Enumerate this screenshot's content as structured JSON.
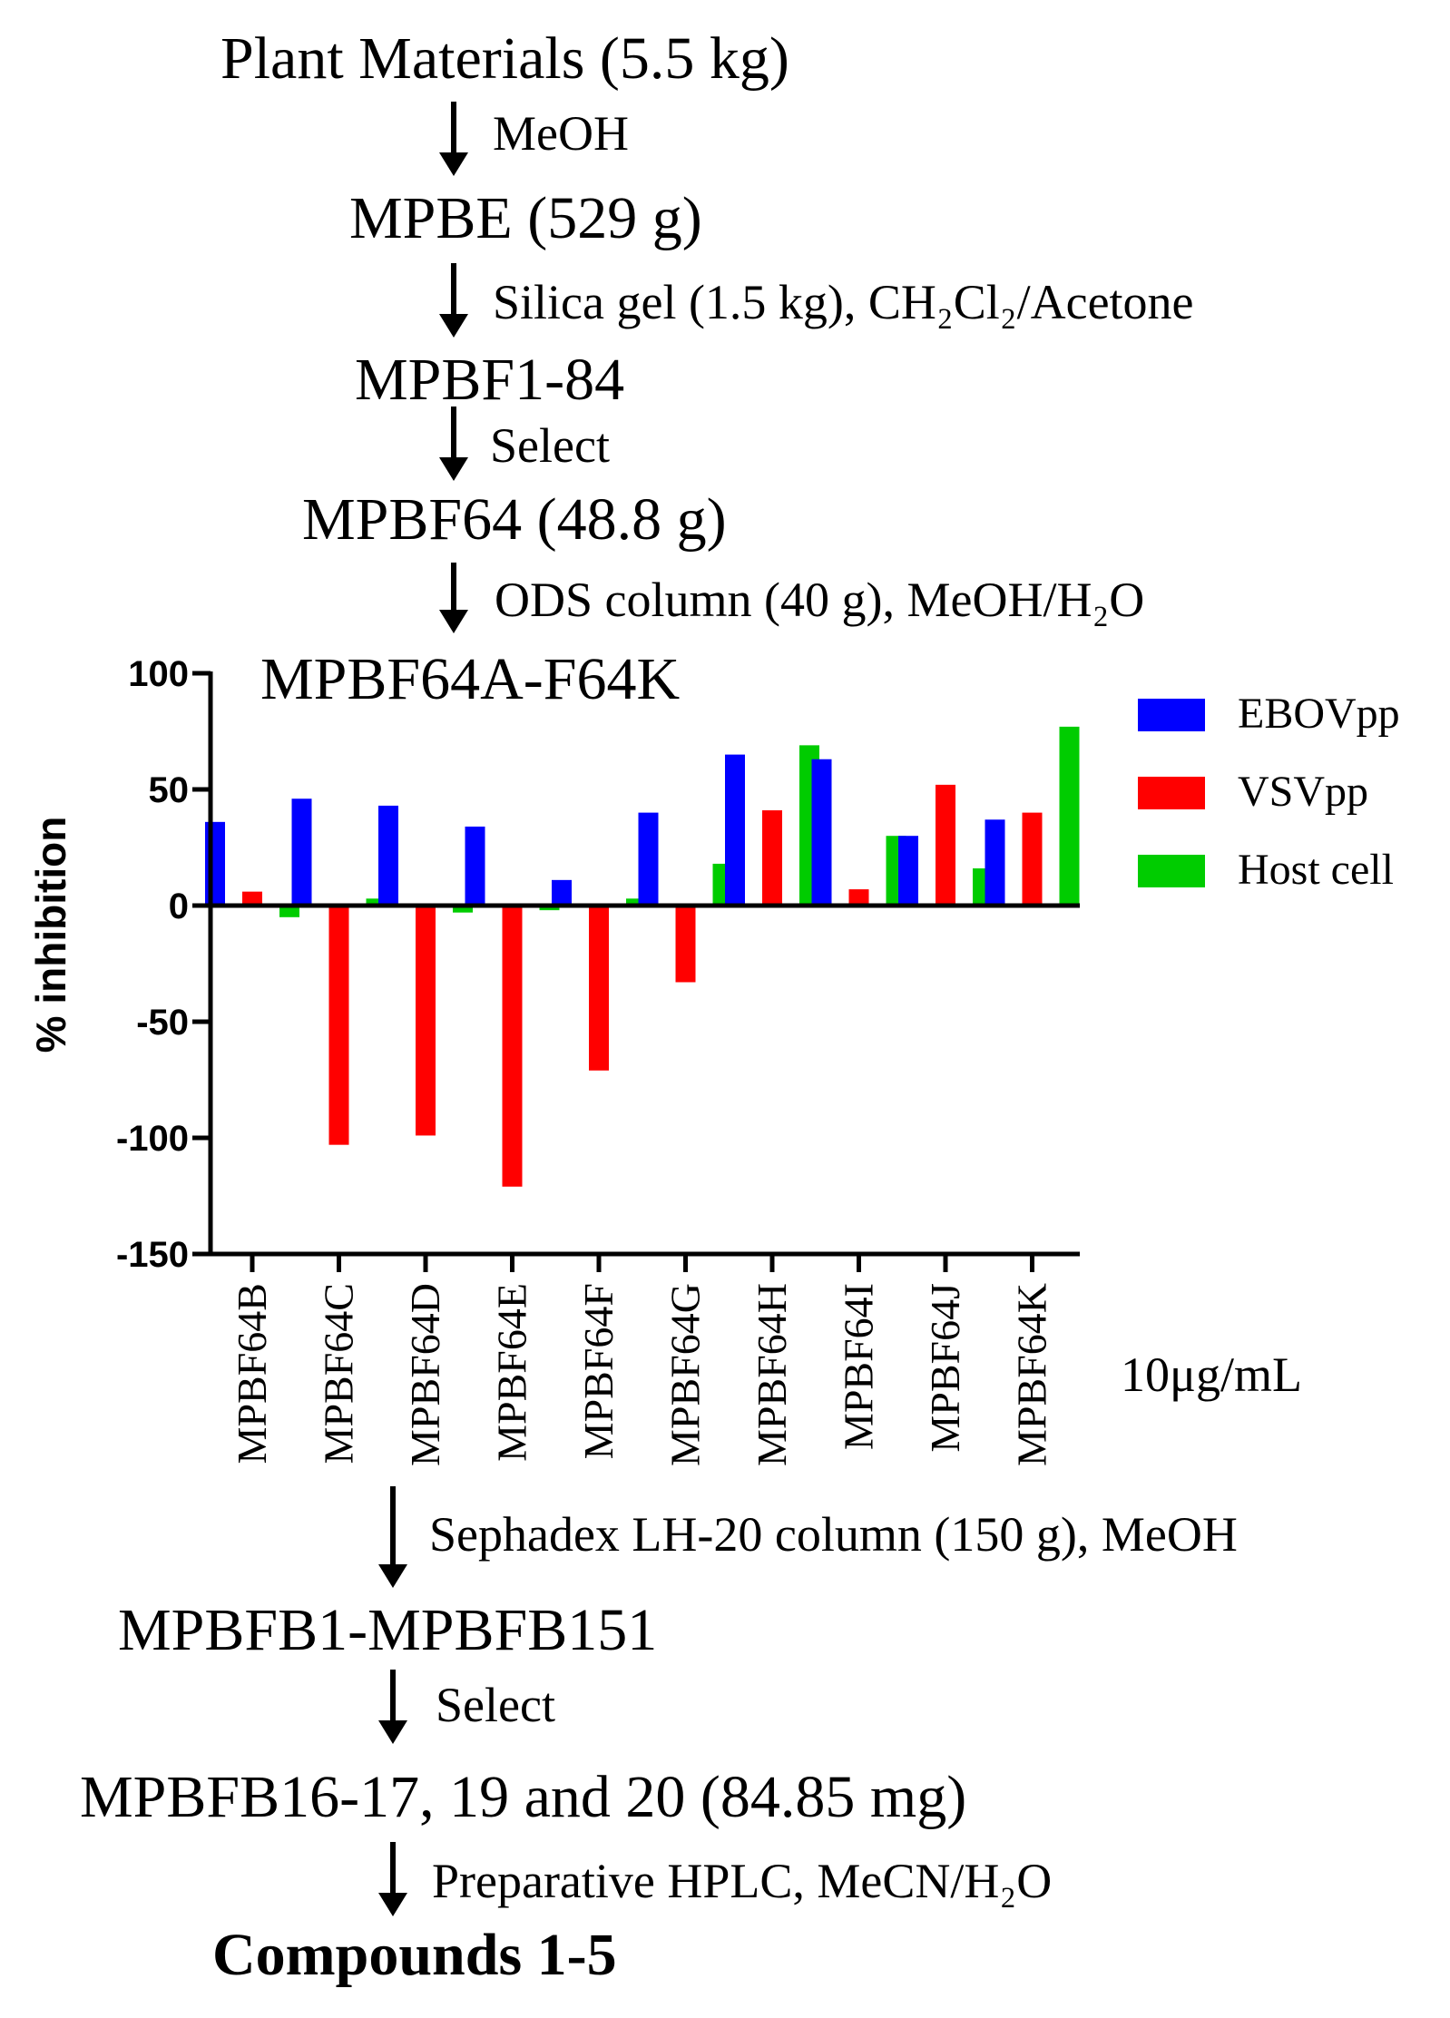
{
  "flow": {
    "plant": "Plant Materials (5.5 kg)",
    "meoh": "MeOH",
    "mpbe": "MPBE (529 g)",
    "silica": "Silica gel (1.5 kg), CH₂Cl₂/Acetone",
    "mpbf184": "MPBF1-84",
    "select1": "Select",
    "mpbf64": "MPBF64 (48.8 g)",
    "ods": "ODS column (40 g), MeOH/H₂O",
    "mpbf64ak": "MPBF64A-F64K",
    "sephadex": "Sephadex LH-20 column (150 g), MeOH",
    "mpbfb": "MPBFB1-MPBFB151",
    "select2": "Select",
    "mpbfb16": "MPBFB16-17, 19 and 20 (84.85 mg)",
    "hplc": "Preparative HPLC, MeCN/H₂O",
    "compounds": "Compounds 1-5"
  },
  "chart_data": {
    "type": "bar",
    "title": "",
    "ylabel": "% inhibition",
    "xlabel": "",
    "ylim": [
      -150,
      100
    ],
    "yticks": [
      100,
      50,
      0,
      -50,
      -100,
      -150
    ],
    "concentration_note": "10μg/mL",
    "legend_position": "top-right",
    "categories": [
      "MPBF64B",
      "MPBF64C",
      "MPBF64D",
      "MPBF64E",
      "MPBF64F",
      "MPBF64G",
      "MPBF64H",
      "MPBF64I",
      "MPBF64J",
      "MPBF64K"
    ],
    "series": [
      {
        "name": "EBOVpp",
        "color": "#0000ff",
        "values": [
          36,
          46,
          43,
          34,
          11,
          40,
          65,
          63,
          30,
          37
        ]
      },
      {
        "name": "VSVpp",
        "color": "#ff0000",
        "values": [
          6,
          -103,
          -99,
          -121,
          -71,
          -33,
          41,
          7,
          52,
          40
        ]
      },
      {
        "name": "Host cell",
        "color": "#00cc00",
        "values": [
          -5,
          3,
          -3,
          -2,
          3,
          18,
          69,
          30,
          16,
          77
        ]
      }
    ]
  }
}
